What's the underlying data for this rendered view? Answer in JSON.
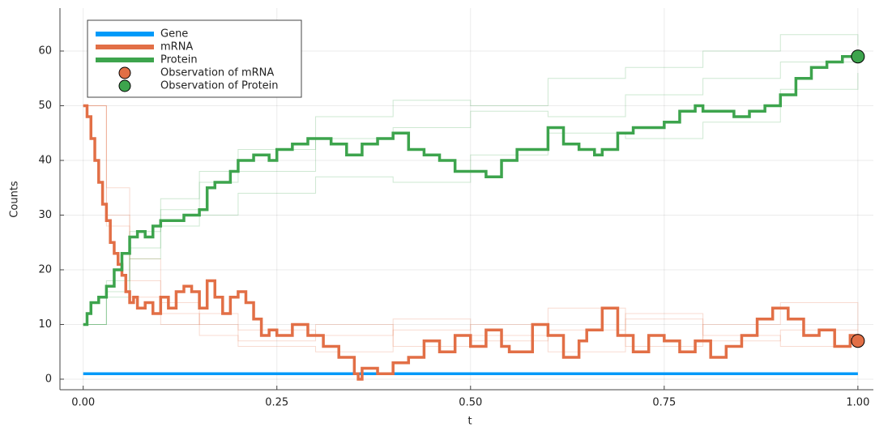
{
  "chart_data": {
    "type": "line",
    "step": "post",
    "xlabel": "t",
    "ylabel": "Counts",
    "xlim": [
      -0.03,
      1.02
    ],
    "ylim": [
      -1.93,
      67.85
    ],
    "xticks": [
      {
        "value": 0,
        "label": "0.00"
      },
      {
        "value": 0.25,
        "label": "0.25"
      },
      {
        "value": 0.5,
        "label": "0.50"
      },
      {
        "value": 0.75,
        "label": "0.75"
      },
      {
        "value": 1,
        "label": "1.00"
      }
    ],
    "yticks": [
      0,
      10,
      20,
      30,
      40,
      50,
      60
    ],
    "grid": true,
    "legend": "upper left",
    "series": [
      {
        "color": "#e26f46",
        "alpha": 0.25,
        "x": [
          0,
          0.03,
          0.06,
          0.1,
          0.15,
          0.2,
          0.3,
          0.4,
          0.5,
          0.6,
          0.7,
          0.8,
          0.9,
          1.0
        ],
        "values": [
          50,
          30,
          18,
          12,
          10,
          9,
          8,
          11,
          7,
          9,
          12,
          8,
          6,
          8
        ]
      },
      {
        "color": "#e26f46",
        "alpha": 0.25,
        "x": [
          0,
          0.03,
          0.06,
          0.1,
          0.15,
          0.2,
          0.3,
          0.4,
          0.5,
          0.6,
          0.7,
          0.8,
          0.9,
          1.0
        ],
        "values": [
          50,
          35,
          22,
          14,
          8,
          6,
          5,
          9,
          10,
          13,
          6,
          10,
          14,
          9
        ]
      },
      {
        "color": "#e26f46",
        "alpha": 0.25,
        "x": [
          0,
          0.03,
          0.06,
          0.1,
          0.15,
          0.2,
          0.3,
          0.4,
          0.5,
          0.6,
          0.7,
          0.8,
          0.9,
          1.0
        ],
        "values": [
          50,
          28,
          15,
          10,
          12,
          7,
          10,
          6,
          8,
          5,
          11,
          7,
          9,
          6
        ]
      },
      {
        "color": "#3da44d",
        "alpha": 0.25,
        "x": [
          0,
          0.03,
          0.06,
          0.1,
          0.15,
          0.2,
          0.3,
          0.4,
          0.5,
          0.6,
          0.7,
          0.8,
          0.9,
          1.0
        ],
        "values": [
          10,
          18,
          27,
          31,
          38,
          42,
          48,
          51,
          50,
          55,
          57,
          60,
          63,
          61
        ]
      },
      {
        "color": "#3da44d",
        "alpha": 0.25,
        "x": [
          0,
          0.03,
          0.06,
          0.1,
          0.15,
          0.2,
          0.3,
          0.4,
          0.5,
          0.6,
          0.7,
          0.8,
          0.9,
          1.0
        ],
        "values": [
          10,
          16,
          24,
          33,
          36,
          38,
          44,
          46,
          49,
          48,
          52,
          55,
          58,
          60
        ]
      },
      {
        "color": "#3da44d",
        "alpha": 0.25,
        "x": [
          0,
          0.03,
          0.06,
          0.1,
          0.15,
          0.2,
          0.3,
          0.4,
          0.5,
          0.6,
          0.7,
          0.8,
          0.9,
          1.0
        ],
        "values": [
          10,
          15,
          22,
          28,
          30,
          34,
          37,
          36,
          41,
          45,
          44,
          47,
          53,
          56
        ]
      },
      {
        "name": "Gene",
        "color": "#009af9",
        "x": [
          0,
          1
        ],
        "values": [
          1,
          1
        ]
      },
      {
        "name": "mRNA",
        "color": "#e26f46",
        "x": [
          0,
          0.005,
          0.01,
          0.015,
          0.02,
          0.025,
          0.03,
          0.035,
          0.04,
          0.045,
          0.05,
          0.055,
          0.06,
          0.065,
          0.07,
          0.08,
          0.09,
          0.1,
          0.11,
          0.12,
          0.13,
          0.14,
          0.15,
          0.16,
          0.17,
          0.18,
          0.19,
          0.2,
          0.21,
          0.22,
          0.23,
          0.24,
          0.25,
          0.27,
          0.29,
          0.31,
          0.33,
          0.35,
          0.355,
          0.36,
          0.38,
          0.4,
          0.42,
          0.44,
          0.46,
          0.48,
          0.5,
          0.52,
          0.54,
          0.55,
          0.58,
          0.6,
          0.62,
          0.64,
          0.65,
          0.67,
          0.69,
          0.71,
          0.73,
          0.75,
          0.77,
          0.79,
          0.81,
          0.83,
          0.85,
          0.87,
          0.89,
          0.91,
          0.93,
          0.95,
          0.97,
          0.99,
          1.0
        ],
        "values": [
          50,
          48,
          44,
          40,
          36,
          32,
          29,
          25,
          23,
          21,
          19,
          16,
          14,
          15,
          13,
          14,
          12,
          15,
          13,
          16,
          17,
          16,
          13,
          18,
          15,
          12,
          15,
          16,
          14,
          11,
          8,
          9,
          8,
          10,
          8,
          6,
          4,
          1,
          0,
          2,
          1,
          3,
          4,
          7,
          5,
          8,
          6,
          9,
          6,
          5,
          10,
          8,
          4,
          7,
          9,
          13,
          8,
          5,
          8,
          7,
          5,
          7,
          4,
          6,
          8,
          11,
          13,
          11,
          8,
          9,
          6,
          8,
          7
        ]
      },
      {
        "name": "Protein",
        "color": "#3da44d",
        "x": [
          0,
          0.005,
          0.01,
          0.02,
          0.03,
          0.04,
          0.05,
          0.06,
          0.07,
          0.08,
          0.09,
          0.1,
          0.12,
          0.13,
          0.15,
          0.16,
          0.17,
          0.19,
          0.2,
          0.22,
          0.24,
          0.25,
          0.27,
          0.29,
          0.3,
          0.32,
          0.34,
          0.36,
          0.38,
          0.4,
          0.42,
          0.44,
          0.46,
          0.48,
          0.5,
          0.52,
          0.54,
          0.56,
          0.58,
          0.6,
          0.62,
          0.64,
          0.66,
          0.67,
          0.69,
          0.71,
          0.73,
          0.75,
          0.77,
          0.79,
          0.8,
          0.82,
          0.84,
          0.86,
          0.88,
          0.9,
          0.92,
          0.94,
          0.96,
          0.98,
          1.0
        ],
        "values": [
          10,
          12,
          14,
          15,
          17,
          20,
          23,
          26,
          27,
          26,
          28,
          29,
          29,
          30,
          31,
          35,
          36,
          38,
          40,
          41,
          40,
          42,
          43,
          44,
          44,
          43,
          41,
          43,
          44,
          45,
          42,
          41,
          40,
          38,
          38,
          37,
          40,
          42,
          42,
          46,
          43,
          42,
          41,
          42,
          45,
          46,
          46,
          47,
          49,
          50,
          49,
          49,
          48,
          49,
          50,
          52,
          55,
          57,
          58,
          59,
          58
        ]
      },
      {
        "name": "Observation of mRNA",
        "kind": "scatter",
        "color": "#e26f46",
        "x": [
          1
        ],
        "values": [
          7
        ]
      },
      {
        "name": "Observation of Protein",
        "kind": "scatter",
        "color": "#3da44d",
        "x": [
          1
        ],
        "values": [
          59
        ]
      }
    ]
  }
}
